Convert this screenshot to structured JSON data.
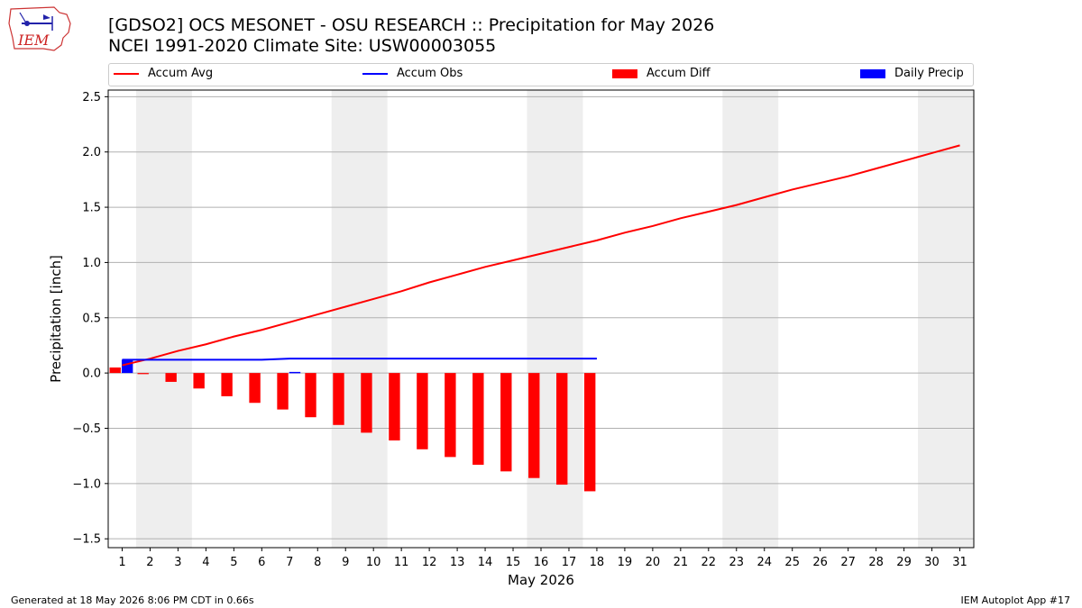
{
  "header": {
    "title_line1": "[GDSO2] OCS MESONET - OSU RESEARCH :: Precipitation for May 2026",
    "title_line2": "NCEI 1991-2020 Climate Site: USW00003055",
    "logo_text": "IEM"
  },
  "legend": {
    "items": [
      {
        "label": "Accum Avg",
        "color": "#ff0000",
        "kind": "line"
      },
      {
        "label": "Accum Obs",
        "color": "#0000ff",
        "kind": "line"
      },
      {
        "label": "Accum Diff",
        "color": "#ff0000",
        "kind": "box"
      },
      {
        "label": "Daily Precip",
        "color": "#0000ff",
        "kind": "box"
      }
    ]
  },
  "footer": {
    "left": "Generated at 18 May 2026 8:06 PM CDT in 0.66s",
    "right": "IEM Autoplot App #17"
  },
  "chart_data": {
    "type": "bar",
    "xlabel": "May 2026",
    "ylabel": "Precipitation [inch]",
    "ylim": [
      -1.58,
      2.56
    ],
    "xlim": [
      0.5,
      31.5
    ],
    "grid": "horizontal",
    "legend_position": "top",
    "yticks": [
      -1.5,
      -1.0,
      -0.5,
      0.0,
      0.5,
      1.0,
      1.5,
      2.0,
      2.5
    ],
    "ytick_labels": [
      "−1.5",
      "−1.0",
      "−0.5",
      "0.0",
      "0.5",
      "1.0",
      "1.5",
      "2.0",
      "2.5"
    ],
    "days": [
      1,
      2,
      3,
      4,
      5,
      6,
      7,
      8,
      9,
      10,
      11,
      12,
      13,
      14,
      15,
      16,
      17,
      18,
      19,
      20,
      21,
      22,
      23,
      24,
      25,
      26,
      27,
      28,
      29,
      30,
      31
    ],
    "weekend_shading": [
      [
        2,
        3
      ],
      [
        9,
        10
      ],
      [
        16,
        17
      ],
      [
        23,
        24
      ],
      [
        30,
        31
      ]
    ],
    "series": [
      {
        "name": "Accum Avg",
        "type": "line",
        "color": "#ff0000",
        "x": [
          1,
          2,
          3,
          4,
          5,
          6,
          7,
          8,
          9,
          10,
          11,
          12,
          13,
          14,
          15,
          16,
          17,
          18,
          19,
          20,
          21,
          22,
          23,
          24,
          25,
          26,
          27,
          28,
          29,
          30,
          31
        ],
        "values": [
          0.07,
          0.13,
          0.2,
          0.26,
          0.33,
          0.39,
          0.46,
          0.53,
          0.6,
          0.67,
          0.74,
          0.82,
          0.89,
          0.96,
          1.02,
          1.08,
          1.14,
          1.2,
          1.27,
          1.33,
          1.4,
          1.46,
          1.52,
          1.59,
          1.66,
          1.72,
          1.78,
          1.85,
          1.92,
          1.99,
          2.06
        ]
      },
      {
        "name": "Accum Obs",
        "type": "line",
        "color": "#0000ff",
        "x": [
          1,
          2,
          3,
          4,
          5,
          6,
          7,
          8,
          9,
          10,
          11,
          12,
          13,
          14,
          15,
          16,
          17,
          18
        ],
        "values": [
          0.12,
          0.12,
          0.12,
          0.12,
          0.12,
          0.12,
          0.13,
          0.13,
          0.13,
          0.13,
          0.13,
          0.13,
          0.13,
          0.13,
          0.13,
          0.13,
          0.13,
          0.13
        ]
      },
      {
        "name": "Accum Diff",
        "type": "bar",
        "color": "#ff0000",
        "x": [
          1,
          2,
          3,
          4,
          5,
          6,
          7,
          8,
          9,
          10,
          11,
          12,
          13,
          14,
          15,
          16,
          17,
          18
        ],
        "values": [
          0.05,
          -0.01,
          -0.08,
          -0.14,
          -0.21,
          -0.27,
          -0.33,
          -0.4,
          -0.47,
          -0.54,
          -0.61,
          -0.69,
          -0.76,
          -0.83,
          -0.89,
          -0.95,
          -1.01,
          -1.07
        ]
      },
      {
        "name": "Daily Precip",
        "type": "bar",
        "color": "#0000ff",
        "x": [
          1,
          7
        ],
        "values": [
          0.12,
          0.01
        ]
      }
    ]
  }
}
